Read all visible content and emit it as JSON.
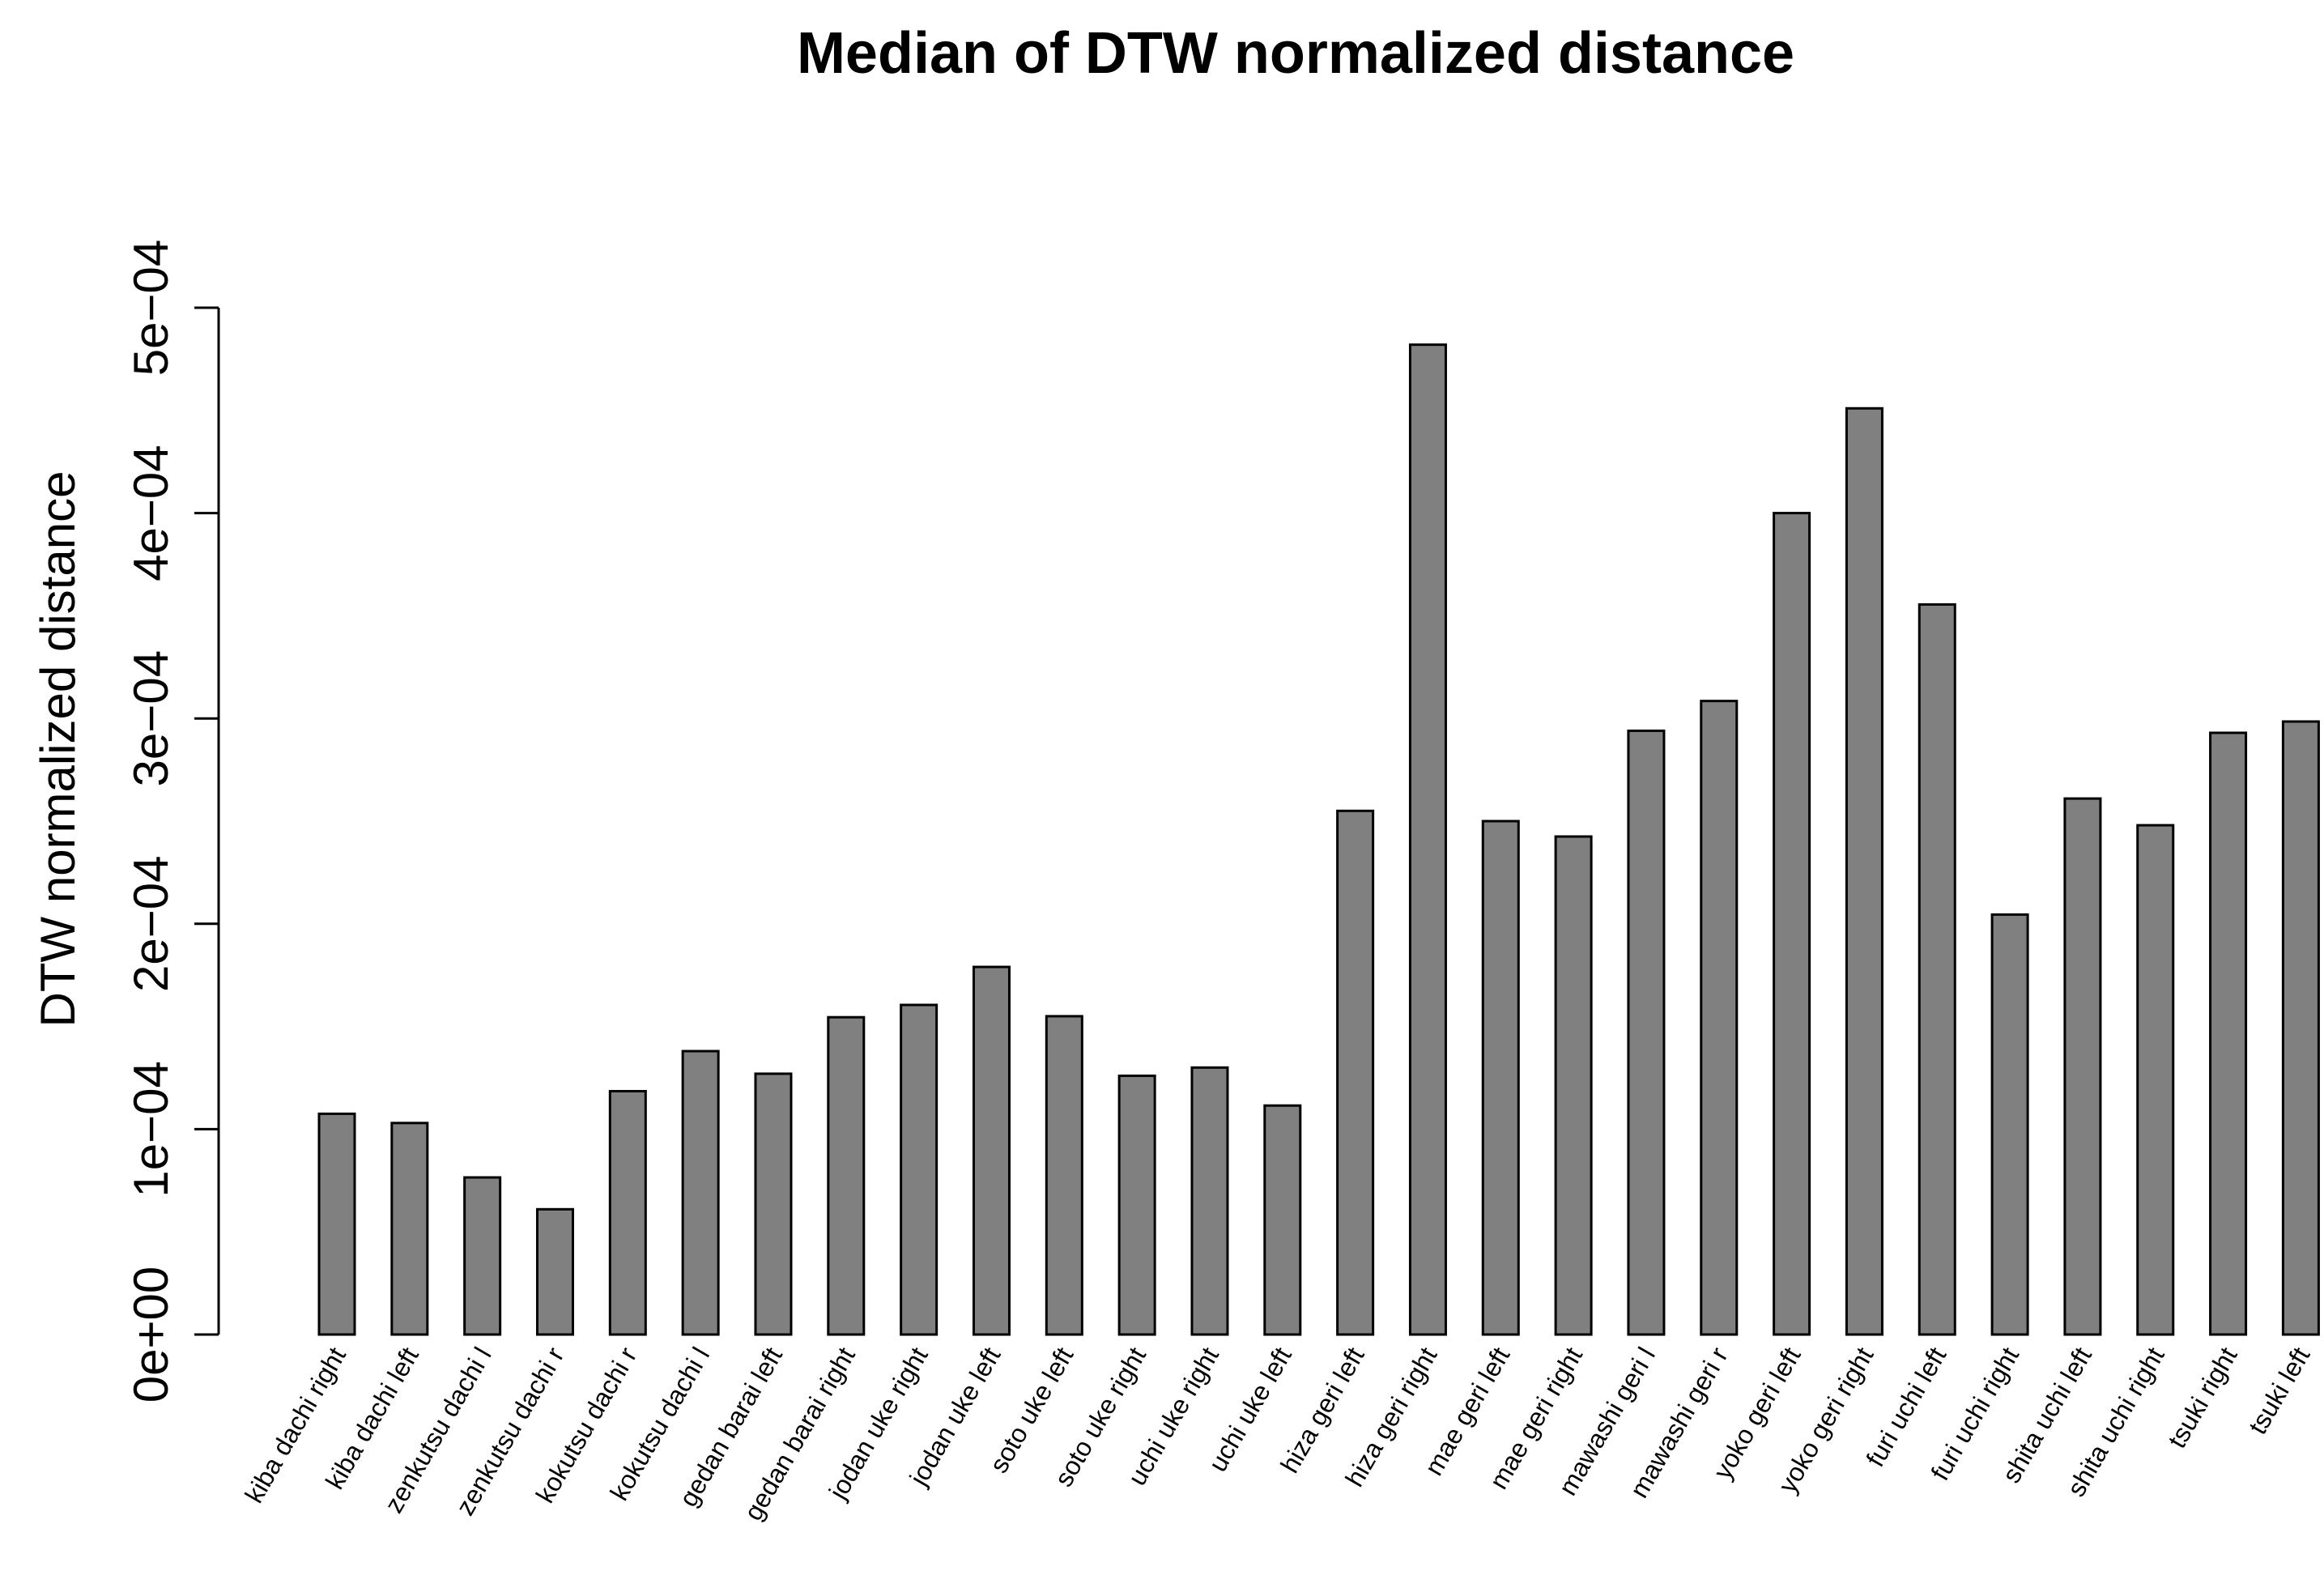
{
  "chart_data": {
    "type": "bar",
    "title": "Median of DTW normalized distance",
    "xlabel": "",
    "ylabel": "DTW normalized distance",
    "ylim": [
      0,
      0.0005
    ],
    "yticks": [
      0,
      0.0001,
      0.0002,
      0.0003,
      0.0004,
      0.0005
    ],
    "ytick_labels": [
      "0e+00",
      "1e−04",
      "2e−04",
      "3e−04",
      "4e−04",
      "5e−04"
    ],
    "grid": false,
    "colors": {
      "bar_fill": "#808080",
      "bar_stroke": "#000000"
    },
    "categories": [
      "kiba dachi right",
      "kiba dachi left",
      "zenkutsu dachi l",
      "zenkutsu dachi r",
      "kokutsu dachi r",
      "kokutsu dachi l",
      "gedan barai left",
      "gedan barai right",
      "jodan uke right",
      "jodan uke left",
      "soto uke left",
      "soto uke right",
      "uchi uke right",
      "uchi uke left",
      "hiza geri left",
      "hiza geri right",
      "mae geri left",
      "mae geri right",
      "mawashi geri l",
      "mawashi geri r",
      "yoko geri left",
      "yoko geri right",
      "furi uchi left",
      "furi uchi right",
      "shita uchi left",
      "shita uchi right",
      "tsuki right",
      "tsuki left"
    ],
    "values": [
      0.0001075,
      0.000103,
      7.65e-05,
      6.1e-05,
      0.0001185,
      0.000138,
      0.000127,
      0.0001545,
      0.0001605,
      0.000179,
      0.000155,
      0.000126,
      0.00013,
      0.0001115,
      0.000255,
      0.000482,
      0.00025,
      0.0002425,
      0.000294,
      0.0003085,
      0.0004,
      0.000451,
      0.0003555,
      0.0002045,
      0.000261,
      0.000248,
      0.000293,
      0.0002985
    ]
  }
}
